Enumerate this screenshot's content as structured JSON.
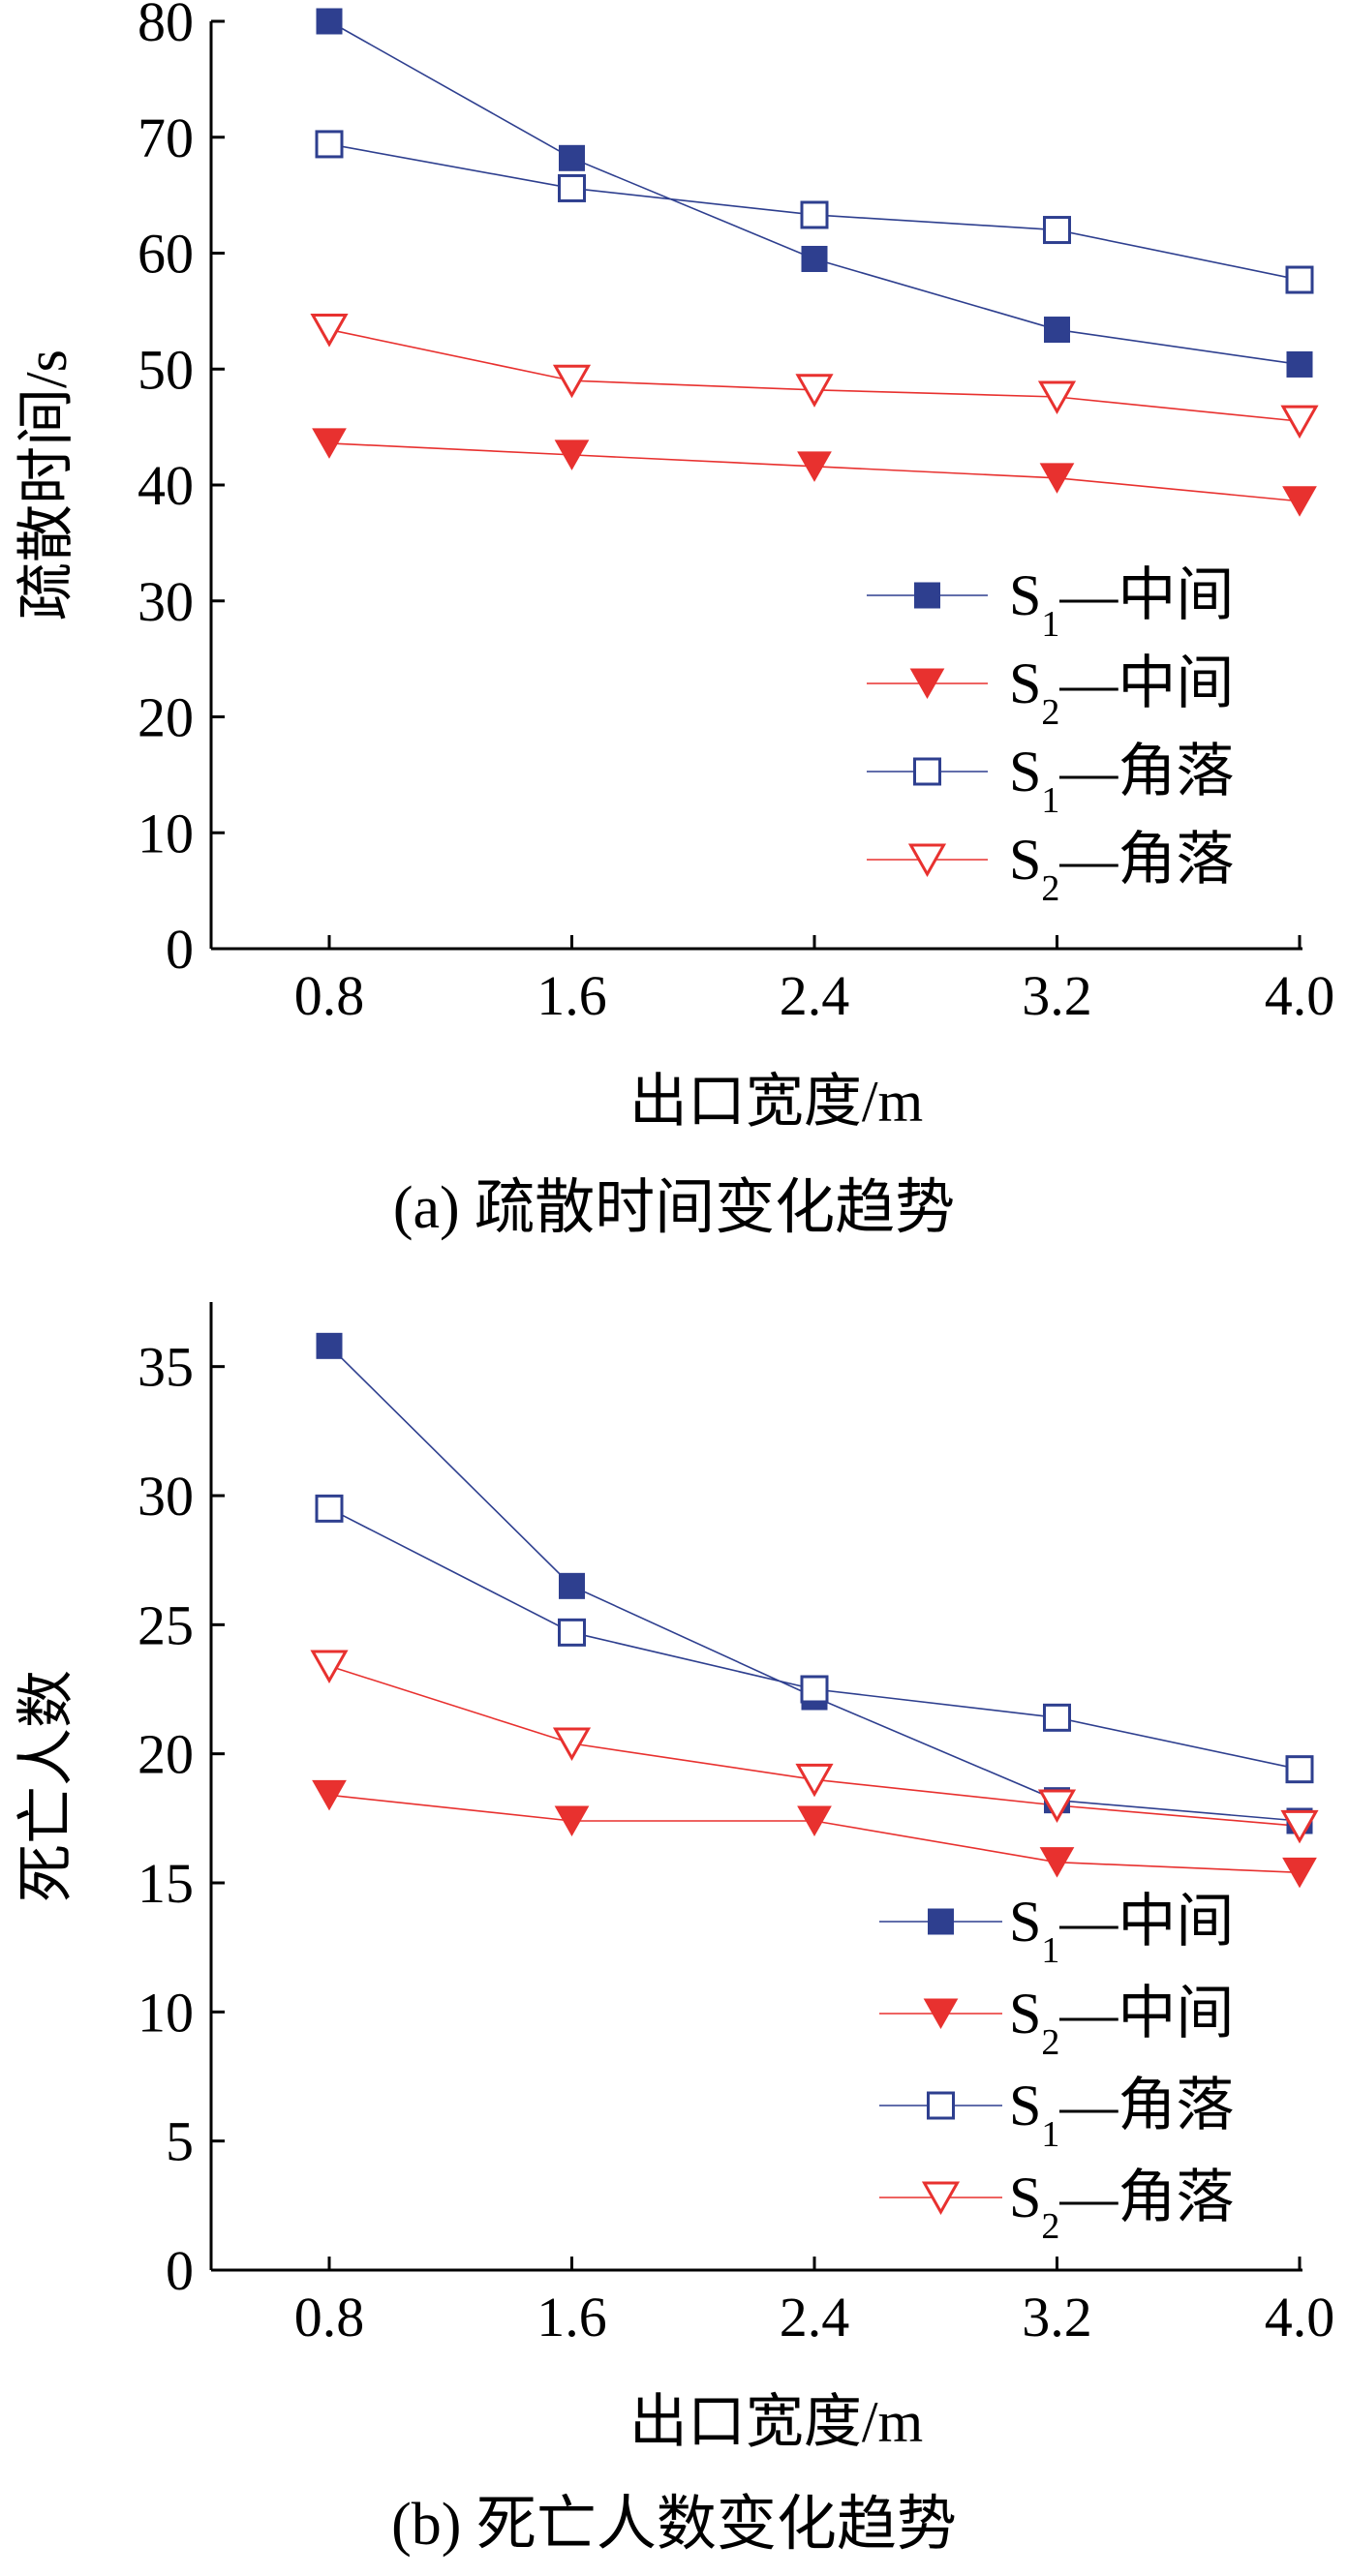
{
  "chart_data": [
    {
      "type": "line",
      "caption": "(a) 疏散时间变化趋势",
      "xlabel": "出口宽度/m",
      "ylabel": "疏散时间/s",
      "x": [
        "0.8",
        "1.6",
        "2.4",
        "3.2",
        "4.0"
      ],
      "ylim": [
        0,
        80
      ],
      "yticks": [
        "0",
        "10",
        "20",
        "30",
        "40",
        "50",
        "60",
        "70",
        "80"
      ],
      "legend_position": "lower-right",
      "grid": false,
      "series": [
        {
          "name_main": "S",
          "name_sub": "1",
          "name_rest": "—中间",
          "marker": "square-filled",
          "color": "#2e3f8f",
          "values": [
            80.0,
            68.2,
            59.5,
            53.4,
            50.4
          ]
        },
        {
          "name_main": "S",
          "name_sub": "2",
          "name_rest": "—中间",
          "marker": "triangle-filled",
          "color": "#e8312f",
          "values": [
            43.6,
            42.6,
            41.6,
            40.6,
            38.6
          ]
        },
        {
          "name_main": "S",
          "name_sub": "1",
          "name_rest": "—角落",
          "marker": "square-open",
          "color": "#2e3f8f",
          "values": [
            69.4,
            65.6,
            63.3,
            62.0,
            57.7
          ]
        },
        {
          "name_main": "S",
          "name_sub": "2",
          "name_rest": "—角落",
          "marker": "triangle-open",
          "color": "#e8312f",
          "values": [
            53.4,
            49.0,
            48.2,
            47.6,
            45.5
          ]
        }
      ]
    },
    {
      "type": "line",
      "caption": "(b) 死亡人数变化趋势",
      "xlabel": "出口宽度/m",
      "ylabel": "死亡人数",
      "x": [
        "0.8",
        "1.6",
        "2.4",
        "3.2",
        "4.0"
      ],
      "ylim": [
        0,
        37.5
      ],
      "yticks": [
        "0",
        "5",
        "10",
        "15",
        "20",
        "25",
        "30",
        "35"
      ],
      "legend_position": "lower-right",
      "grid": false,
      "series": [
        {
          "name_main": "S",
          "name_sub": "1",
          "name_rest": "—中间",
          "marker": "square-filled",
          "color": "#2e3f8f",
          "values": [
            35.8,
            26.5,
            22.2,
            18.2,
            17.4
          ]
        },
        {
          "name_main": "S",
          "name_sub": "2",
          "name_rest": "—中间",
          "marker": "triangle-filled",
          "color": "#e8312f",
          "values": [
            18.4,
            17.4,
            17.4,
            15.8,
            15.4
          ]
        },
        {
          "name_main": "S",
          "name_sub": "1",
          "name_rest": "—角落",
          "marker": "square-open",
          "color": "#2e3f8f",
          "values": [
            29.5,
            24.7,
            22.5,
            21.4,
            19.4
          ]
        },
        {
          "name_main": "S",
          "name_sub": "2",
          "name_rest": "—角落",
          "marker": "triangle-open",
          "color": "#e8312f",
          "values": [
            23.4,
            20.4,
            19.0,
            18.0,
            17.2
          ]
        }
      ]
    }
  ]
}
